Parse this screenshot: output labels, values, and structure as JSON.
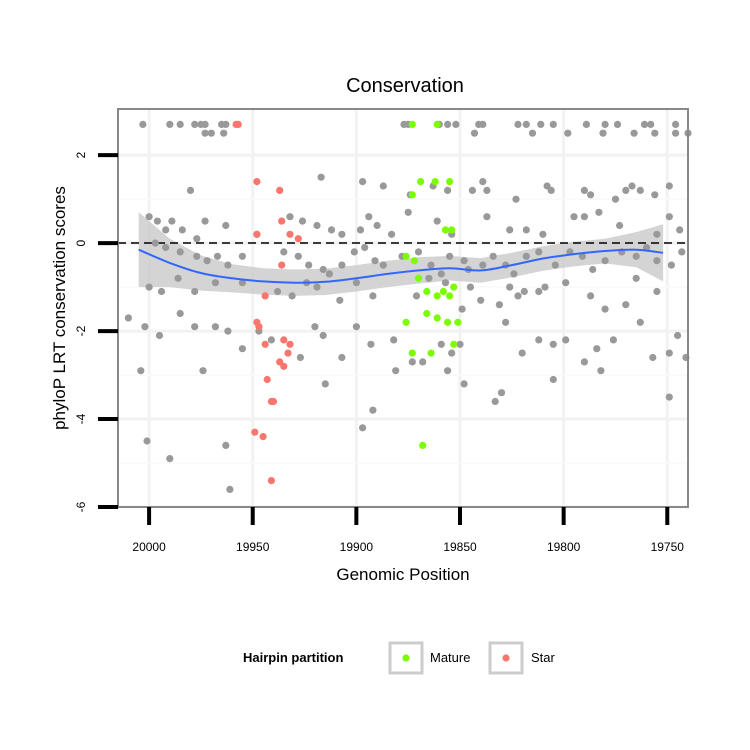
{
  "chart_data": {
    "type": "scatter",
    "title": "Conservation",
    "xlabel": "Genomic Position",
    "ylabel": "phyloP LRT conservation scores",
    "x_reversed": true,
    "xlim": [
      20015,
      19740
    ],
    "ylim": [
      -6,
      3.05
    ],
    "x_ticks": [
      20000,
      19950,
      19900,
      19850,
      19800,
      19750
    ],
    "y_ticks": [
      -6,
      -4,
      -2,
      0,
      2
    ],
    "grid": true,
    "reference_line": {
      "y": 0,
      "style": "dashed"
    },
    "colors": {
      "background": "#ffffff",
      "other": "#999999",
      "mature": "#7cfc00",
      "star": "#f8766d",
      "smooth": "#3366ff",
      "band": "#cccccc",
      "panel_border": "#888888"
    },
    "legend": {
      "title": "Hairpin partition",
      "position": "bottom",
      "entries": [
        {
          "label": "Mature",
          "color": "#7cfc00"
        },
        {
          "label": "Star",
          "color": "#f8766d"
        }
      ]
    },
    "series": [
      {
        "key": "other",
        "color": "#999999",
        "points": [
          [
            20003,
            2.7
          ],
          [
            19990,
            2.7
          ],
          [
            19985,
            2.7
          ],
          [
            19978,
            2.7
          ],
          [
            19975,
            2.7
          ],
          [
            19973,
            2.7
          ],
          [
            19965,
            2.7
          ],
          [
            19963,
            2.7
          ],
          [
            19973,
            2.5
          ],
          [
            19970,
            2.5
          ],
          [
            19964,
            2.5
          ],
          [
            19877,
            2.7
          ],
          [
            19875,
            2.7
          ],
          [
            19860,
            2.7
          ],
          [
            19856,
            2.7
          ],
          [
            19852,
            2.7
          ],
          [
            19841,
            2.7
          ],
          [
            19839,
            2.7
          ],
          [
            19822,
            2.7
          ],
          [
            19818,
            2.7
          ],
          [
            19811,
            2.7
          ],
          [
            19805,
            2.7
          ],
          [
            19789,
            2.7
          ],
          [
            19780,
            2.7
          ],
          [
            19774,
            2.7
          ],
          [
            19761,
            2.7
          ],
          [
            19758,
            2.7
          ],
          [
            19746,
            2.7
          ],
          [
            19843,
            2.5
          ],
          [
            19815,
            2.5
          ],
          [
            19798,
            2.5
          ],
          [
            19781,
            2.5
          ],
          [
            19766,
            2.5
          ],
          [
            19756,
            2.5
          ],
          [
            19746,
            2.5
          ],
          [
            19740,
            2.5
          ],
          [
            19980,
            1.2
          ],
          [
            19917,
            1.5
          ],
          [
            19897,
            1.4
          ],
          [
            19887,
            1.3
          ],
          [
            19874,
            1.1
          ],
          [
            19863,
            1.3
          ],
          [
            19856,
            1.2
          ],
          [
            19844,
            1.2
          ],
          [
            19839,
            1.4
          ],
          [
            19837,
            1.2
          ],
          [
            19823,
            1.0
          ],
          [
            19808,
            1.3
          ],
          [
            19806,
            1.2
          ],
          [
            19790,
            1.2
          ],
          [
            19787,
            1.1
          ],
          [
            19775,
            1.0
          ],
          [
            19770,
            1.2
          ],
          [
            19767,
            1.3
          ],
          [
            19763,
            1.2
          ],
          [
            19756,
            1.1
          ],
          [
            19749,
            1.3
          ],
          [
            20000,
            0.6
          ],
          [
            19996,
            0.5
          ],
          [
            19992,
            0.3
          ],
          [
            19989,
            0.5
          ],
          [
            19984,
            0.3
          ],
          [
            19977,
            0.1
          ],
          [
            19973,
            0.5
          ],
          [
            19963,
            0.4
          ],
          [
            19948,
            0.2
          ],
          [
            19932,
            0.6
          ],
          [
            19926,
            0.5
          ],
          [
            19919,
            0.4
          ],
          [
            19912,
            0.3
          ],
          [
            19907,
            0.2
          ],
          [
            19898,
            0.3
          ],
          [
            19894,
            0.6
          ],
          [
            19890,
            0.4
          ],
          [
            19883,
            0.2
          ],
          [
            19875,
            0.7
          ],
          [
            19861,
            0.5
          ],
          [
            19854,
            0.2
          ],
          [
            19837,
            0.6
          ],
          [
            19826,
            0.3
          ],
          [
            19818,
            0.3
          ],
          [
            19810,
            0.2
          ],
          [
            19795,
            0.6
          ],
          [
            19790,
            0.6
          ],
          [
            19783,
            0.7
          ],
          [
            19773,
            0.4
          ],
          [
            19755,
            0.2
          ],
          [
            19749,
            0.6
          ],
          [
            19744,
            0.3
          ],
          [
            19997,
            0.0
          ],
          [
            19992,
            -0.1
          ],
          [
            19985,
            -0.2
          ],
          [
            19977,
            -0.3
          ],
          [
            19972,
            -0.4
          ],
          [
            19967,
            -0.3
          ],
          [
            19962,
            -0.5
          ],
          [
            19955,
            -0.3
          ],
          [
            19935,
            -0.2
          ],
          [
            19928,
            -0.3
          ],
          [
            19923,
            -0.5
          ],
          [
            19916,
            -0.6
          ],
          [
            19907,
            -0.5
          ],
          [
            19901,
            -0.2
          ],
          [
            19896,
            -0.1
          ],
          [
            19891,
            -0.4
          ],
          [
            19887,
            -0.5
          ],
          [
            19878,
            -0.3
          ],
          [
            19870,
            -0.2
          ],
          [
            19864,
            -0.5
          ],
          [
            19859,
            -0.7
          ],
          [
            19855,
            -0.3
          ],
          [
            19848,
            -0.4
          ],
          [
            19846,
            -0.6
          ],
          [
            19839,
            -0.5
          ],
          [
            19834,
            -0.3
          ],
          [
            19828,
            -0.5
          ],
          [
            19824,
            -0.7
          ],
          [
            19818,
            -0.3
          ],
          [
            19812,
            -0.2
          ],
          [
            19804,
            -0.5
          ],
          [
            19797,
            -0.2
          ],
          [
            19791,
            -0.3
          ],
          [
            19786,
            -0.6
          ],
          [
            19780,
            -0.4
          ],
          [
            19772,
            -0.2
          ],
          [
            19765,
            -0.3
          ],
          [
            19760,
            -0.1
          ],
          [
            19755,
            -0.4
          ],
          [
            19748,
            -0.5
          ],
          [
            19743,
            -0.2
          ],
          [
            20000,
            -1.0
          ],
          [
            19994,
            -1.1
          ],
          [
            19986,
            -0.8
          ],
          [
            19978,
            -1.1
          ],
          [
            19968,
            -0.9
          ],
          [
            19955,
            -0.9
          ],
          [
            19938,
            -1.1
          ],
          [
            19931,
            -1.2
          ],
          [
            19924,
            -0.9
          ],
          [
            19919,
            -1.0
          ],
          [
            19913,
            -0.7
          ],
          [
            19908,
            -1.3
          ],
          [
            19900,
            -0.9
          ],
          [
            19892,
            -1.2
          ],
          [
            19871,
            -1.2
          ],
          [
            19865,
            -0.8
          ],
          [
            19857,
            -0.9
          ],
          [
            19849,
            -1.5
          ],
          [
            19845,
            -1.0
          ],
          [
            19840,
            -1.3
          ],
          [
            19831,
            -1.4
          ],
          [
            19826,
            -1.0
          ],
          [
            19822,
            -1.2
          ],
          [
            19819,
            -1.1
          ],
          [
            19812,
            -1.1
          ],
          [
            19809,
            -1.0
          ],
          [
            19799,
            -0.9
          ],
          [
            19787,
            -1.2
          ],
          [
            19780,
            -1.5
          ],
          [
            19770,
            -1.4
          ],
          [
            19765,
            -0.8
          ],
          [
            19755,
            -1.1
          ],
          [
            20010,
            -1.7
          ],
          [
            20002,
            -1.9
          ],
          [
            19995,
            -2.1
          ],
          [
            19985,
            -1.6
          ],
          [
            19978,
            -1.9
          ],
          [
            19968,
            -1.9
          ],
          [
            19962,
            -2.0
          ],
          [
            19955,
            -2.4
          ],
          [
            19947,
            -2.0
          ],
          [
            19941,
            -2.2
          ],
          [
            19927,
            -2.6
          ],
          [
            19920,
            -1.9
          ],
          [
            19916,
            -2.1
          ],
          [
            19907,
            -2.6
          ],
          [
            19900,
            -1.9
          ],
          [
            19893,
            -2.3
          ],
          [
            19882,
            -2.2
          ],
          [
            19873,
            -2.7
          ],
          [
            19868,
            -2.7
          ],
          [
            19859,
            -2.3
          ],
          [
            19854,
            -2.5
          ],
          [
            19850,
            -2.3
          ],
          [
            19828,
            -1.8
          ],
          [
            19820,
            -2.5
          ],
          [
            19812,
            -2.2
          ],
          [
            19805,
            -2.3
          ],
          [
            19799,
            -2.2
          ],
          [
            19790,
            -2.7
          ],
          [
            19784,
            -2.4
          ],
          [
            19776,
            -2.2
          ],
          [
            19763,
            -1.8
          ],
          [
            19757,
            -2.6
          ],
          [
            19749,
            -2.5
          ],
          [
            19745,
            -2.1
          ],
          [
            19741,
            -2.6
          ],
          [
            20004,
            -2.9
          ],
          [
            19990,
            -4.9
          ],
          [
            19974,
            -2.9
          ],
          [
            19963,
            -4.6
          ],
          [
            19961,
            -5.6
          ],
          [
            19915,
            -3.2
          ],
          [
            19897,
            -4.2
          ],
          [
            19892,
            -3.8
          ],
          [
            19881,
            -2.9
          ],
          [
            19856,
            -2.9
          ],
          [
            19848,
            -3.2
          ],
          [
            19833,
            -3.6
          ],
          [
            19830,
            -3.4
          ],
          [
            19805,
            -3.1
          ],
          [
            19782,
            -2.9
          ],
          [
            19749,
            -3.5
          ],
          [
            20001,
            -4.5
          ]
        ]
      },
      {
        "key": "mature",
        "name": "Mature",
        "color": "#7cfc00",
        "points": [
          [
            19873,
            2.7
          ],
          [
            19861,
            2.7
          ],
          [
            19869,
            1.4
          ],
          [
            19862,
            1.4
          ],
          [
            19855,
            1.4
          ],
          [
            19873,
            1.1
          ],
          [
            19857,
            0.3
          ],
          [
            19854,
            0.3
          ],
          [
            19876,
            -0.3
          ],
          [
            19872,
            -0.4
          ],
          [
            19870,
            -0.8
          ],
          [
            19866,
            -1.1
          ],
          [
            19858,
            -1.1
          ],
          [
            19861,
            -1.2
          ],
          [
            19855,
            -1.2
          ],
          [
            19853,
            -1.0
          ],
          [
            19876,
            -1.8
          ],
          [
            19866,
            -1.6
          ],
          [
            19861,
            -1.7
          ],
          [
            19856,
            -1.8
          ],
          [
            19851,
            -1.8
          ],
          [
            19873,
            -2.5
          ],
          [
            19864,
            -2.5
          ],
          [
            19853,
            -2.3
          ],
          [
            19868,
            -4.6
          ]
        ]
      },
      {
        "key": "star",
        "name": "Star",
        "color": "#f8766d",
        "points": [
          [
            19958,
            2.7
          ],
          [
            19957,
            2.7
          ],
          [
            19948,
            1.4
          ],
          [
            19937,
            1.2
          ],
          [
            19936,
            0.5
          ],
          [
            19932,
            0.2
          ],
          [
            19948,
            0.2
          ],
          [
            19928,
            0.1
          ],
          [
            19936,
            -0.5
          ],
          [
            19944,
            -1.2
          ],
          [
            19948,
            -1.8
          ],
          [
            19947,
            -1.9
          ],
          [
            19944,
            -2.3
          ],
          [
            19935,
            -2.2
          ],
          [
            19932,
            -2.3
          ],
          [
            19933,
            -2.5
          ],
          [
            19937,
            -2.7
          ],
          [
            19935,
            -2.8
          ],
          [
            19943,
            -3.1
          ],
          [
            19941,
            -3.6
          ],
          [
            19940,
            -3.6
          ],
          [
            19949,
            -4.3
          ],
          [
            19945,
            -4.4
          ],
          [
            19941,
            -5.4
          ]
        ]
      }
    ],
    "smooth": {
      "x": [
        20005,
        19990,
        19975,
        19960,
        19945,
        19930,
        19915,
        19900,
        19885,
        19870,
        19855,
        19840,
        19825,
        19810,
        19795,
        19780,
        19765,
        19752
      ],
      "y": [
        -0.15,
        -0.45,
        -0.68,
        -0.8,
        -0.87,
        -0.9,
        -0.88,
        -0.8,
        -0.7,
        -0.62,
        -0.57,
        -0.62,
        -0.5,
        -0.35,
        -0.25,
        -0.18,
        -0.15,
        -0.22
      ],
      "band": [
        0.85,
        0.55,
        0.4,
        0.32,
        0.3,
        0.3,
        0.3,
        0.3,
        0.3,
        0.3,
        0.28,
        0.28,
        0.28,
        0.28,
        0.28,
        0.28,
        0.4,
        0.65
      ]
    }
  }
}
